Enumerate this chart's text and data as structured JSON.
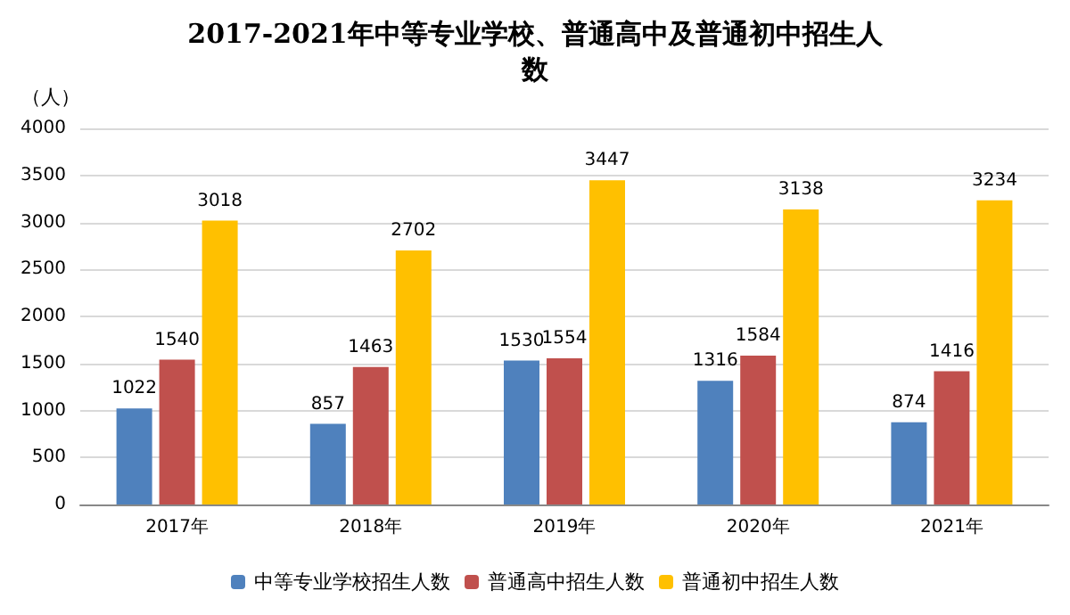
{
  "chart_data": {
    "type": "bar",
    "title": "2017-2021年中等专业学校、普通高中及普通初中招生人数",
    "ylabel": "（人）",
    "categories": [
      "2017年",
      "2018年",
      "2019年",
      "2020年",
      "2021年"
    ],
    "series": [
      {
        "name": "中等专业学校招生人数",
        "color": "#4f81bd",
        "values": [
          1022,
          857,
          1530,
          1316,
          874
        ]
      },
      {
        "name": "普通高中招生人数",
        "color": "#c0504d",
        "values": [
          1540,
          1463,
          1554,
          1584,
          1416
        ]
      },
      {
        "name": "普通初中招生人数",
        "color": "#ffc000",
        "values": [
          3018,
          2702,
          3447,
          3138,
          3234
        ]
      }
    ],
    "ylim": [
      0,
      4000
    ],
    "yticks": [
      0,
      500,
      1000,
      1500,
      2000,
      2500,
      3000,
      3500,
      4000
    ],
    "grid": "y",
    "legend": "bottom",
    "data_labels": true
  }
}
